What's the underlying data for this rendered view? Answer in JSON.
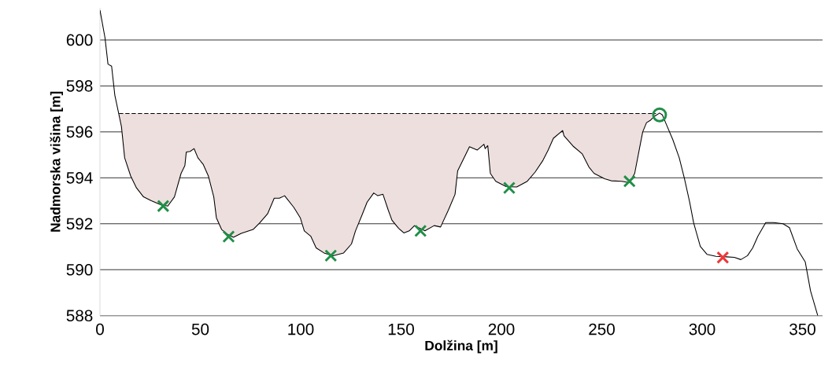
{
  "chart_data": {
    "type": "line",
    "xlabel": "Dolžina [m]",
    "ylabel": "Nadmorska višina [m]",
    "xlim": [
      0,
      360
    ],
    "ylim": [
      588,
      601.4
    ],
    "xticks": [
      0,
      50,
      100,
      150,
      200,
      250,
      300,
      350
    ],
    "yticks": [
      588,
      590,
      592,
      594,
      596,
      598,
      600
    ],
    "grid": "y",
    "series": [
      {
        "type": "line",
        "color": "#000000",
        "line_style": "dashed",
        "marker": "none",
        "x": [
          9.5,
          10.7,
          12.3,
          15.3,
          18.2,
          21.7,
          25.6,
          30.2,
          33.8,
          37.1,
          40.4,
          42.3,
          43.0,
          44.9,
          46.9,
          48.8,
          51.4,
          54.0,
          56.7,
          58.0,
          60.6,
          63.9,
          66.5,
          70.4,
          76.3,
          79.5,
          83.5,
          86.8,
          89.4,
          92.0,
          96.6,
          99.8,
          101.8,
          105.0,
          107.7,
          111.6,
          116.1,
          121.4,
          125.3,
          127.3,
          130.5,
          133.1,
          136.4,
          138.4,
          141.0,
          143.6,
          145.5,
          148.8,
          151.4,
          154.1,
          156.7,
          161.9,
          166.5,
          169.7,
          173.6,
          176.9,
          178.2,
          180.8,
          184.1,
          188.0,
          191.3,
          191.9,
          193.2,
          194.5,
          197.2,
          202.4,
          207.6,
          212.9,
          216.8,
          220.7,
          223.3,
          225.9,
          230.5,
          231.2,
          235.7,
          240.3,
          243.6,
          246.2,
          251.4,
          254.7,
          259.9,
          263.8,
          266.4,
          268.4,
          270.4,
          272.3,
          274.3,
          276.3,
          277.0
        ],
        "values": [
          596.8,
          596.8,
          596.8,
          596.8,
          596.8,
          596.8,
          596.8,
          596.8,
          596.8,
          596.8,
          596.8,
          596.8,
          596.8,
          596.8,
          596.8,
          596.8,
          596.8,
          596.8,
          596.8,
          596.8,
          596.8,
          596.8,
          596.8,
          596.8,
          596.8,
          596.8,
          596.8,
          596.8,
          596.8,
          596.8,
          596.8,
          596.8,
          596.8,
          596.8,
          596.8,
          596.8,
          596.8,
          596.8,
          596.8,
          596.8,
          596.8,
          596.8,
          596.8,
          596.8,
          596.8,
          596.8,
          596.8,
          596.8,
          596.8,
          596.8,
          596.8,
          596.8,
          596.8,
          596.8,
          596.8,
          596.8,
          596.8,
          596.8,
          596.8,
          596.8,
          596.8,
          596.8,
          596.8,
          596.8,
          596.8,
          596.8,
          596.8,
          596.8,
          596.8,
          596.8,
          596.8,
          596.8,
          596.8,
          596.8,
          596.8,
          596.8,
          596.8,
          596.8,
          596.8,
          596.8,
          596.8,
          596.8,
          596.8,
          596.8,
          596.8,
          596.8,
          596.8,
          596.8,
          596.8
        ],
        "upper": [
          596.8,
          596.8,
          596.8,
          596.8,
          596.8,
          596.8,
          596.8,
          596.8,
          596.8,
          596.8,
          596.8,
          596.8,
          596.8,
          596.8,
          596.8,
          596.8,
          596.8,
          596.8,
          596.8,
          596.8,
          596.8,
          596.8,
          596.8,
          596.8,
          596.8,
          596.8,
          596.8,
          596.8,
          596.8,
          596.8,
          596.8,
          596.8,
          596.8,
          596.8,
          596.8,
          596.8,
          596.8,
          596.8,
          596.8,
          596.8,
          596.8,
          596.8,
          596.8,
          596.8,
          596.8,
          596.8,
          596.8,
          596.8,
          596.8,
          596.8,
          596.8,
          596.8,
          596.8,
          596.8,
          596.8,
          596.8,
          596.8,
          596.8,
          596.8,
          596.8,
          596.8,
          596.8,
          596.8,
          596.8,
          596.8,
          596.8,
          596.8,
          596.8,
          596.8,
          596.8,
          596.8,
          596.8,
          596.8,
          596.8,
          596.8,
          596.8,
          596.8,
          596.8,
          596.8,
          596.8,
          596.8,
          596.8,
          596.8,
          596.8,
          596.8,
          596.8,
          596.8,
          596.8,
          596.8
        ],
        "lower": [
          596.8,
          596.23,
          594.87,
          594.08,
          593.56,
          593.17,
          593.0,
          592.83,
          592.77,
          593.17,
          594.19,
          594.53,
          595.12,
          595.15,
          595.27,
          594.87,
          594.59,
          594.08,
          593.17,
          592.26,
          591.75,
          591.52,
          591.41,
          591.58,
          591.75,
          592.03,
          592.43,
          593.11,
          593.11,
          593.22,
          592.71,
          592.26,
          591.69,
          591.46,
          590.95,
          590.73,
          590.61,
          590.73,
          591.12,
          591.69,
          592.37,
          592.94,
          593.34,
          593.22,
          593.28,
          592.6,
          592.15,
          591.8,
          591.6,
          591.69,
          591.92,
          591.69,
          591.92,
          591.86,
          592.6,
          593.28,
          594.3,
          594.76,
          595.35,
          595.21,
          595.46,
          595.27,
          595.4,
          594.19,
          593.85,
          593.62,
          593.6,
          593.85,
          594.25,
          594.76,
          595.21,
          595.72,
          596.06,
          595.83,
          595.38,
          595.04,
          594.47,
          594.19,
          593.96,
          593.87,
          593.85,
          593.79,
          594.19,
          595.1,
          596.0,
          596.4,
          596.51,
          596.68,
          596.8
        ]
      },
      {
        "type": "line",
        "color": "#000000",
        "line_style": "solid",
        "marker": "none",
        "x": [
          0,
          2.5,
          4.0,
          5.8,
          7.4,
          9.1,
          10.7,
          12.3,
          15.3,
          18.2,
          21.7,
          25.6,
          30.2,
          33.8,
          37.1,
          40.4,
          42.3,
          43.0,
          44.9,
          46.9,
          48.8,
          51.4,
          54.0,
          56.7,
          58.0,
          60.6,
          63.9,
          66.5,
          70.4,
          76.3,
          79.5,
          83.5,
          86.8,
          89.4,
          92.0,
          96.6,
          99.8,
          101.8,
          105.0,
          107.7,
          111.6,
          116.1,
          121.4,
          125.3,
          127.3,
          130.5,
          133.1,
          136.4,
          138.4,
          141.0,
          143.6,
          145.5,
          148.8,
          151.4,
          154.1,
          156.7,
          161.9,
          166.5,
          169.7,
          173.6,
          176.9,
          178.2,
          180.8,
          184.1,
          188.0,
          191.3,
          191.9,
          193.2,
          194.5,
          197.2,
          202.4,
          207.6,
          212.9,
          216.8,
          220.7,
          223.3,
          225.9,
          230.5,
          231.2,
          235.7,
          240.3,
          243.6,
          246.2,
          251.4,
          254.7,
          259.9,
          263.8,
          266.4,
          268.4,
          270.4,
          272.3,
          274.3,
          276.3,
          278.8,
          280.2,
          282.1,
          285.4,
          288.6,
          291.2,
          293.8,
          295.8,
          299.1,
          302.4,
          306.9,
          312.1,
          316.0,
          319.3,
          322.6,
          325.2,
          327.8,
          331.7,
          335.7,
          340.3,
          343.5,
          347.4,
          351.4,
          354.0,
          357.6
        ],
        "values": [
          601.3,
          600.1,
          598.95,
          598.86,
          597.6,
          596.9,
          596.23,
          594.87,
          594.08,
          593.56,
          593.17,
          593.0,
          592.83,
          592.77,
          593.17,
          594.19,
          594.53,
          595.12,
          595.15,
          595.27,
          594.87,
          594.59,
          594.08,
          593.17,
          592.26,
          591.75,
          591.52,
          591.41,
          591.58,
          591.75,
          592.03,
          592.43,
          593.11,
          593.11,
          593.22,
          592.71,
          592.26,
          591.69,
          591.46,
          590.95,
          590.73,
          590.61,
          590.73,
          591.12,
          591.69,
          592.37,
          592.94,
          593.34,
          593.22,
          593.28,
          592.6,
          592.15,
          591.8,
          591.6,
          591.69,
          591.92,
          591.69,
          591.92,
          591.86,
          592.6,
          593.28,
          594.3,
          594.76,
          595.35,
          595.21,
          595.46,
          595.27,
          595.4,
          594.19,
          593.85,
          593.62,
          593.6,
          593.85,
          594.25,
          594.76,
          595.21,
          595.72,
          596.06,
          595.83,
          595.38,
          595.04,
          594.47,
          594.19,
          593.96,
          593.87,
          593.85,
          593.79,
          594.19,
          595.1,
          596.0,
          596.4,
          596.51,
          596.68,
          596.82,
          596.74,
          596.34,
          595.66,
          594.87,
          593.96,
          592.94,
          592.03,
          591.01,
          590.67,
          590.58,
          590.56,
          590.54,
          590.44,
          590.61,
          590.95,
          591.46,
          592.05,
          592.05,
          592.0,
          591.83,
          590.9,
          590.33,
          589.08,
          588.0
        ]
      },
      {
        "type": "scatter",
        "color": "#1f8f47",
        "marker": "cross",
        "x": [
          31.5,
          64.1,
          115.0,
          159.7,
          203.9,
          263.8
        ],
        "values": [
          592.77,
          591.44,
          590.61,
          591.69,
          593.56,
          593.85
        ]
      },
      {
        "type": "scatter",
        "color": "#1f8f47",
        "marker": "circle",
        "x": [
          278.8
        ],
        "values": [
          596.74
        ]
      },
      {
        "type": "scatter",
        "color": "#ee3737",
        "marker": "cross",
        "x": [
          310.3
        ],
        "values": [
          590.53
        ]
      }
    ]
  }
}
